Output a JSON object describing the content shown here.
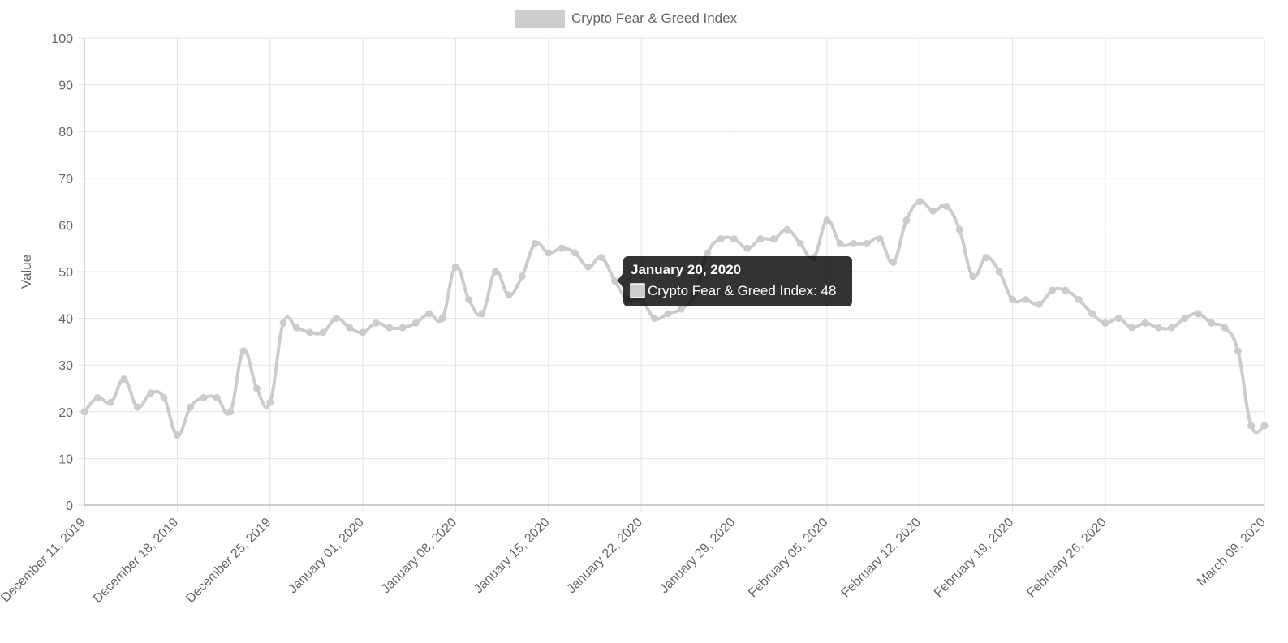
{
  "chart_data": {
    "type": "line",
    "legend": {
      "label": "Crypto Fear & Greed Index",
      "position": "top",
      "color": "#cccccc"
    },
    "ylabel": "Value",
    "ylim": [
      0,
      100
    ],
    "yticks": [
      0,
      10,
      20,
      30,
      40,
      50,
      60,
      70,
      80,
      90,
      100
    ],
    "xlim": [
      "2019-12-11",
      "2020-03-09"
    ],
    "x_tick_labels": [
      "December 11, 2019",
      "December 18, 2019",
      "December 25, 2019",
      "January 01, 2020",
      "January 08, 2020",
      "January 15, 2020",
      "January 22, 2020",
      "January 29, 2020",
      "February 05, 2020",
      "February 12, 2020",
      "February 19, 2020",
      "February 26, 2020",
      "March 09, 2020"
    ],
    "x_tick_dates": [
      "2019-12-11",
      "2019-12-18",
      "2019-12-25",
      "2020-01-01",
      "2020-01-08",
      "2020-01-15",
      "2020-01-22",
      "2020-01-29",
      "2020-02-05",
      "2020-02-12",
      "2020-02-19",
      "2020-02-26",
      "2020-03-09"
    ],
    "grid": true,
    "series": [
      {
        "name": "Crypto Fear & Greed Index",
        "color": "#cccccc",
        "x": [
          "2019-12-11",
          "2019-12-12",
          "2019-12-13",
          "2019-12-14",
          "2019-12-15",
          "2019-12-16",
          "2019-12-17",
          "2019-12-18",
          "2019-12-19",
          "2019-12-20",
          "2019-12-21",
          "2019-12-22",
          "2019-12-23",
          "2019-12-24",
          "2019-12-25",
          "2019-12-26",
          "2019-12-27",
          "2019-12-28",
          "2019-12-29",
          "2019-12-30",
          "2019-12-31",
          "2020-01-01",
          "2020-01-02",
          "2020-01-03",
          "2020-01-04",
          "2020-01-05",
          "2020-01-06",
          "2020-01-07",
          "2020-01-08",
          "2020-01-09",
          "2020-01-10",
          "2020-01-11",
          "2020-01-12",
          "2020-01-13",
          "2020-01-14",
          "2020-01-15",
          "2020-01-16",
          "2020-01-17",
          "2020-01-18",
          "2020-01-19",
          "2020-01-20",
          "2020-01-21",
          "2020-01-22",
          "2020-01-23",
          "2020-01-24",
          "2020-01-25",
          "2020-01-26",
          "2020-01-27",
          "2020-01-28",
          "2020-01-29",
          "2020-01-30",
          "2020-01-31",
          "2020-02-01",
          "2020-02-02",
          "2020-02-03",
          "2020-02-04",
          "2020-02-05",
          "2020-02-06",
          "2020-02-07",
          "2020-02-08",
          "2020-02-09",
          "2020-02-10",
          "2020-02-11",
          "2020-02-12",
          "2020-02-13",
          "2020-02-14",
          "2020-02-15",
          "2020-02-16",
          "2020-02-17",
          "2020-02-18",
          "2020-02-19",
          "2020-02-20",
          "2020-02-21",
          "2020-02-22",
          "2020-02-23",
          "2020-02-24",
          "2020-02-25",
          "2020-02-26",
          "2020-02-27",
          "2020-02-28",
          "2020-02-29",
          "2020-03-01",
          "2020-03-02",
          "2020-03-03",
          "2020-03-04",
          "2020-03-05",
          "2020-03-06",
          "2020-03-07",
          "2020-03-08",
          "2020-03-09"
        ],
        "values": [
          20,
          23,
          22,
          27,
          21,
          24,
          23,
          15,
          21,
          23,
          23,
          20,
          33,
          25,
          22,
          39,
          38,
          37,
          37,
          40,
          38,
          37,
          39,
          38,
          38,
          39,
          41,
          40,
          51,
          44,
          41,
          50,
          45,
          49,
          56,
          54,
          55,
          54,
          51,
          53,
          48,
          44,
          44,
          40,
          41,
          42,
          45,
          54,
          57,
          57,
          55,
          57,
          57,
          59,
          56,
          53,
          61,
          56,
          56,
          56,
          57,
          52,
          61,
          65,
          63,
          64,
          59,
          49,
          53,
          50,
          44,
          44,
          43,
          46,
          46,
          44,
          41,
          39,
          40,
          38,
          39,
          38,
          38,
          40,
          41,
          39,
          38,
          33,
          17,
          17
        ]
      }
    ],
    "tooltip": {
      "title": "January 20, 2020",
      "label": "Crypto Fear & Greed Index: 48"
    }
  }
}
